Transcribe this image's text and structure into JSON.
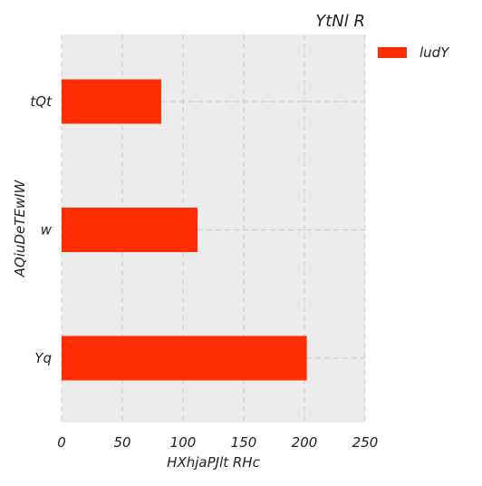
{
  "chart_data": {
    "type": "bar",
    "orientation": "horizontal",
    "title": "YtNl R",
    "xlabel": "HXhjaPJlt RHc",
    "ylabel": "AQiuDeTEwIW",
    "categories": [
      "tQt",
      "w",
      "Yq"
    ],
    "series": [
      {
        "name": "ludY",
        "values": [
          82,
          112,
          202
        ],
        "color": "#ff2d00"
      }
    ],
    "xlim": [
      0,
      250
    ],
    "xticks": [
      0,
      50,
      100,
      150,
      200,
      250
    ],
    "grid": true,
    "legend_position": "outside-top-right",
    "background_color": "#ebebeb",
    "grid_color": "#cfcfcf"
  }
}
